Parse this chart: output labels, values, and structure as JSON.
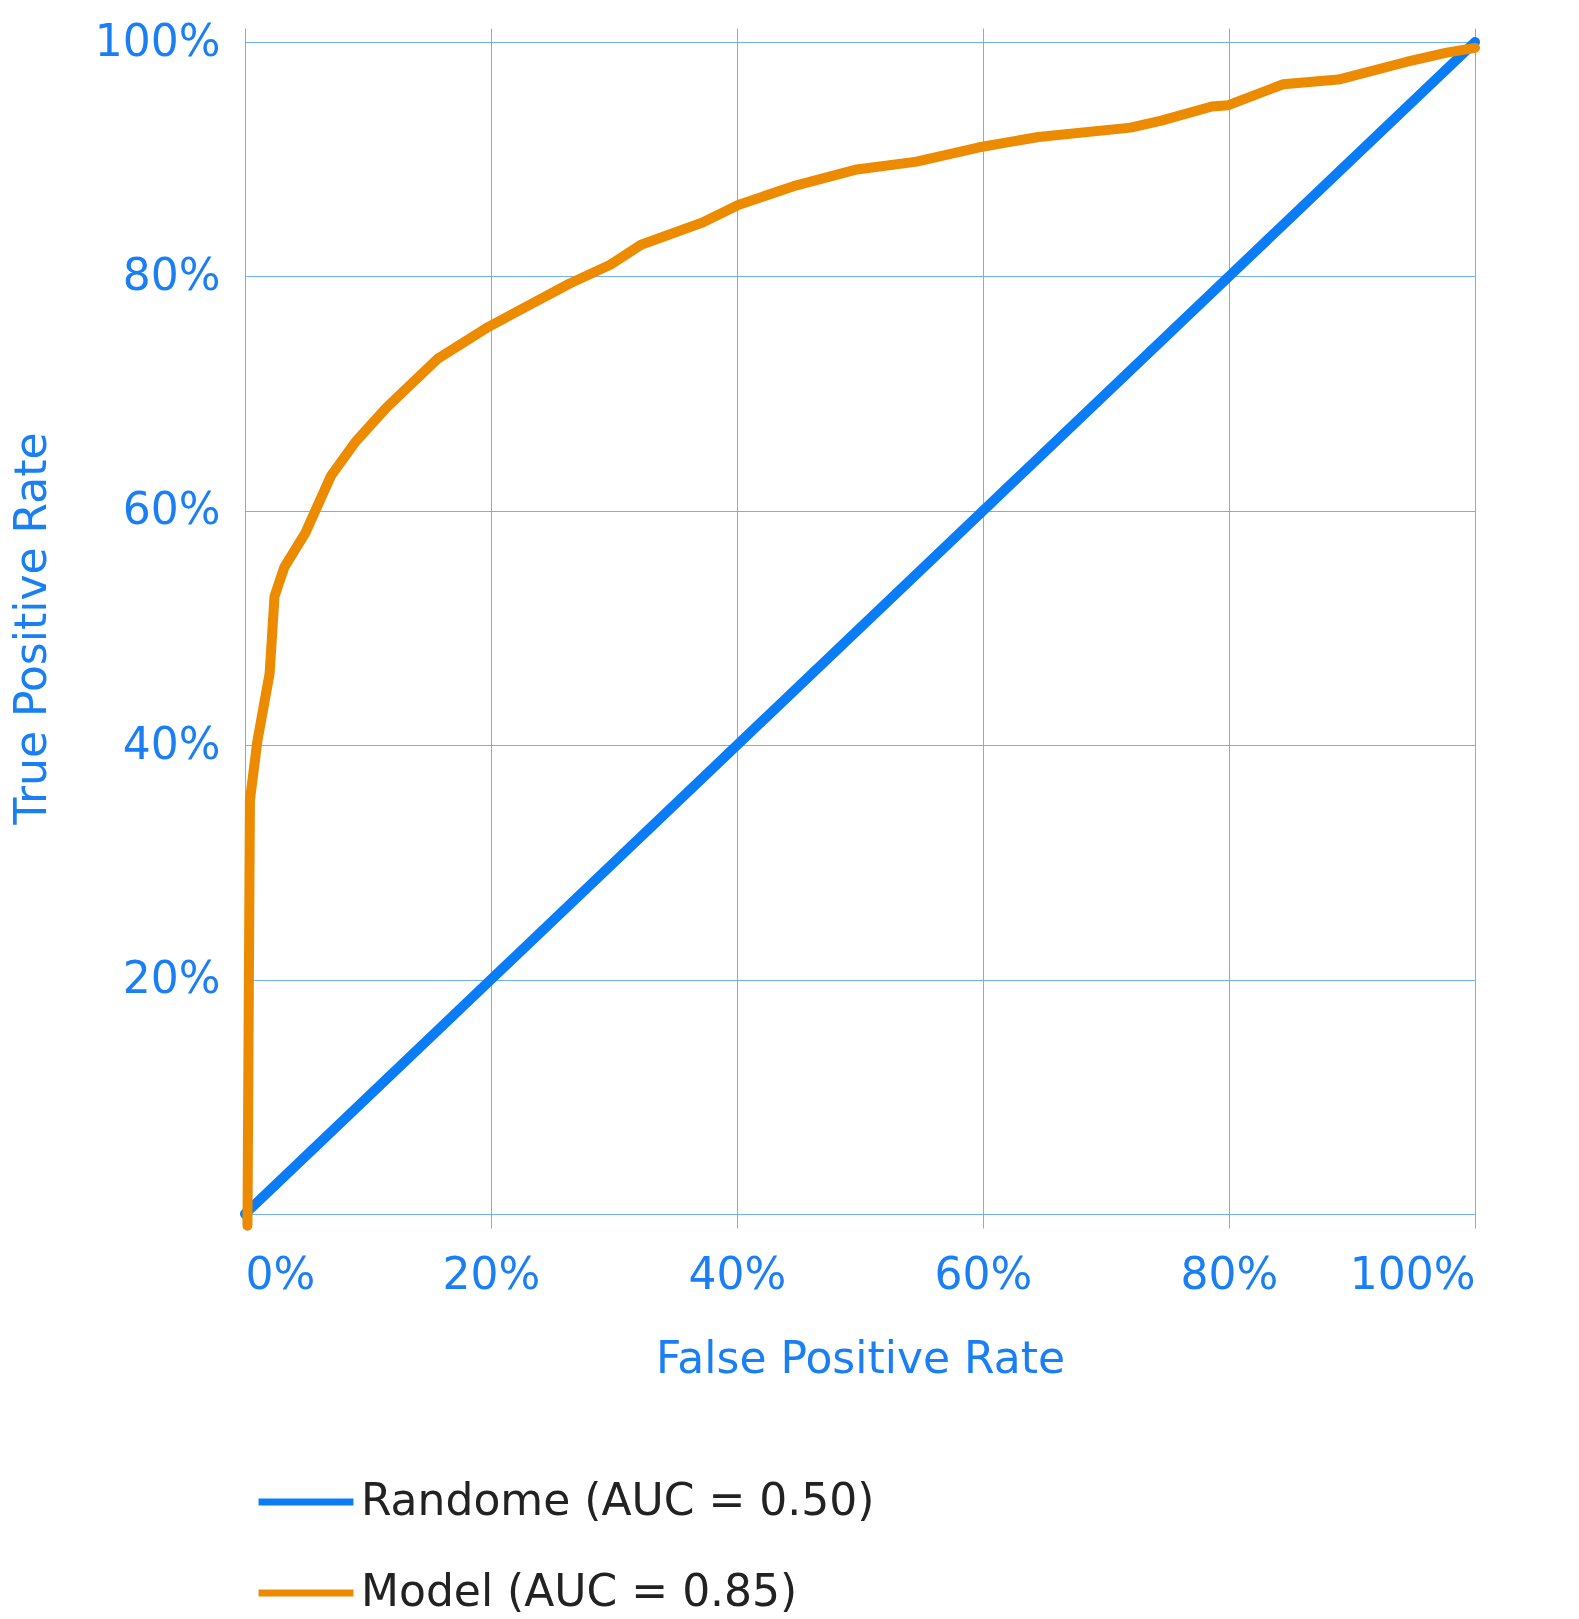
{
  "chart_data": {
    "type": "line",
    "xlabel": "False Positive Rate",
    "ylabel": "True Positive Rate",
    "xlim": [
      0,
      100
    ],
    "ylim": [
      -1.2,
      101.2
    ],
    "xticks": [
      {
        "value": 0,
        "label": "0%"
      },
      {
        "value": 20,
        "label": "20%"
      },
      {
        "value": 40,
        "label": "40%"
      },
      {
        "value": 60,
        "label": "60%"
      },
      {
        "value": 80,
        "label": "80%"
      },
      {
        "value": 100,
        "label": "100%"
      }
    ],
    "yticks": [
      {
        "value": 0,
        "label": null
      },
      {
        "value": 20,
        "label": "20%"
      },
      {
        "value": 40,
        "label": "40%"
      },
      {
        "value": 60,
        "label": "60%"
      },
      {
        "value": 80,
        "label": "80%"
      },
      {
        "value": 100,
        "label": "100%"
      }
    ],
    "grid": true,
    "legend": "bottom",
    "marker": "none",
    "line_style": "solid",
    "series": [
      {
        "name": "Randome (AUC = 0.50)",
        "color": "#0a7cf5",
        "x": [
          0,
          100
        ],
        "values": [
          0,
          100
        ]
      },
      {
        "name": "Model (AUC = 0.85)",
        "color": "#ec8a00",
        "x": [
          0.2,
          0.4,
          1.0,
          2.0,
          2.4,
          3.2,
          4.9,
          7.0,
          9.0,
          11.5,
          15.7,
          19.8,
          23.9,
          26.4,
          29.7,
          32.2,
          37.2,
          40.1,
          44.6,
          49.6,
          54.6,
          59.6,
          64.5,
          72.0,
          74.5,
          78.6,
          79.9,
          84.4,
          87.7,
          88.9,
          94.4,
          97.7,
          100
        ],
        "values": [
          -1.0,
          35.3,
          40.3,
          46.1,
          52.7,
          55.2,
          58.1,
          63.0,
          65.9,
          68.8,
          73.0,
          75.7,
          78.0,
          79.4,
          81.0,
          82.7,
          84.6,
          86.1,
          87.7,
          89.1,
          89.8,
          91.0,
          91.9,
          92.7,
          93.3,
          94.5,
          94.6,
          96.4,
          96.7,
          96.8,
          98.3,
          99.1,
          99.5
        ]
      }
    ]
  }
}
